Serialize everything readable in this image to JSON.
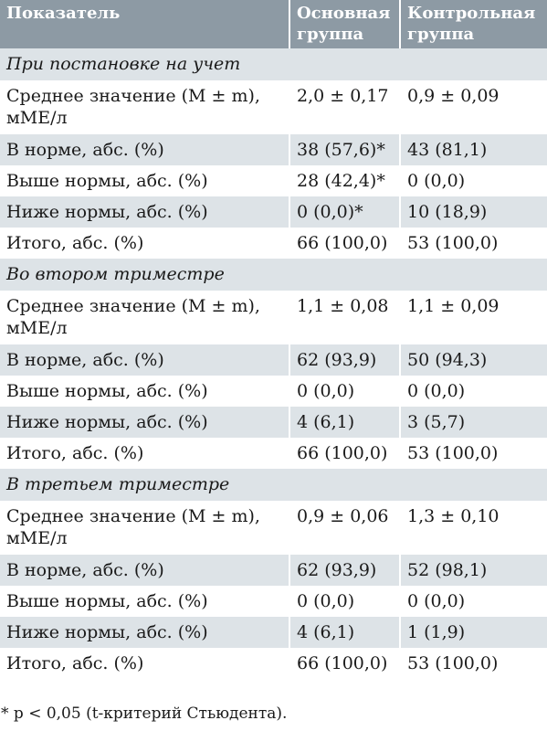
{
  "header": {
    "col1": "Показатель",
    "col2": "Основная группа",
    "col3": "Контрольная группа"
  },
  "sections": [
    {
      "title": "При постановке на учет",
      "rows": [
        {
          "label": "Среднее значение (M ± m), мМЕ/л",
          "main": "2,0 ± 0,17",
          "control": "0,9 ± 0,09"
        },
        {
          "label": "В норме, абс. (%)",
          "main": "38 (57,6)*",
          "control": "43 (81,1)"
        },
        {
          "label": "Выше нормы, абс. (%)",
          "main": "28 (42,4)*",
          "control": "0 (0,0)"
        },
        {
          "label": "Ниже нормы, абс. (%)",
          "main": "0 (0,0)*",
          "control": "10 (18,9)"
        },
        {
          "label": "Итого, абс. (%)",
          "main": "66 (100,0)",
          "control": "53 (100,0)"
        }
      ]
    },
    {
      "title": "Во втором триместре",
      "rows": [
        {
          "label": "Среднее значение (M ± m), мМЕ/л",
          "main": "1,1 ± 0,08",
          "control": "1,1 ± 0,09"
        },
        {
          "label": "В норме, абс. (%)",
          "main": "62 (93,9)",
          "control": "50 (94,3)"
        },
        {
          "label": "Выше нормы, абс. (%)",
          "main": "0 (0,0)",
          "control": "0 (0,0)"
        },
        {
          "label": "Ниже нормы, абс. (%)",
          "main": "4 (6,1)",
          "control": "3 (5,7)"
        },
        {
          "label": "Итого, абс. (%)",
          "main": "66 (100,0)",
          "control": "53 (100,0)"
        }
      ]
    },
    {
      "title": "В третьем триместре",
      "rows": [
        {
          "label": "Среднее значение (M ± m), мМЕ/л",
          "main": "0,9 ± 0,06",
          "control": "1,3 ± 0,10"
        },
        {
          "label": "В норме, абс. (%)",
          "main": "62 (93,9)",
          "control": "52 (98,1)"
        },
        {
          "label": "Выше нормы, абс. (%)",
          "main": "0 (0,0)",
          "control": "0 (0,0)"
        },
        {
          "label": "Ниже нормы, абс. (%)",
          "main": "4 (6,1)",
          "control": "1 (1,9)"
        },
        {
          "label": "Итого, абс. (%)",
          "main": "66 (100,0)",
          "control": "53 (100,0)"
        }
      ]
    }
  ],
  "footnote": "* p < 0,05 (t-критерий Стьюдента)."
}
